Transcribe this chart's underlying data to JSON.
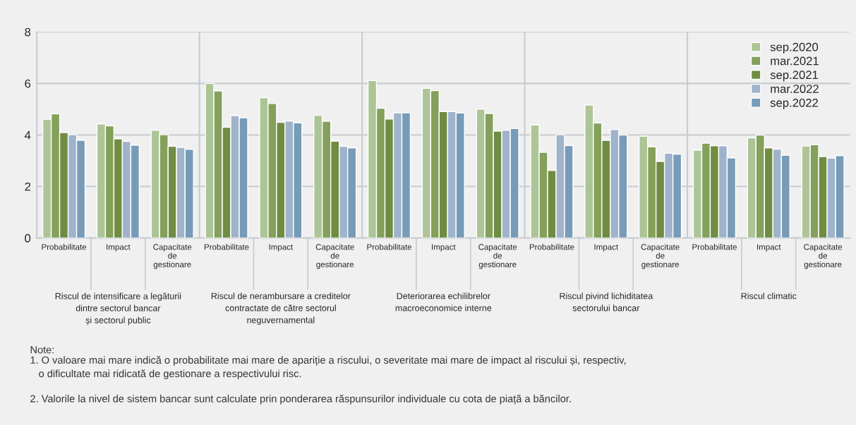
{
  "chart_data": {
    "type": "bar",
    "categories": [
      "Probabilitate",
      "Impact",
      "Capacitate\nde\ngestionare",
      "Probabilitate",
      "Impact",
      "Capacitate\nde\ngestionare",
      "Probabilitate",
      "Impact",
      "Capacitate\nde\ngestionare",
      "Probabilitate",
      "Impact",
      "Capacitate\nde\ngestionare",
      "Probabilitate",
      "Impact",
      "Capacitate\nde\ngestionare"
    ],
    "series": [
      {
        "name": "sep.2020",
        "color": "#adc596",
        "values": [
          4.61,
          4.43,
          4.18,
          6.0,
          5.45,
          4.76,
          6.11,
          5.81,
          5.0,
          4.39,
          5.16,
          3.95,
          3.41,
          3.89,
          3.57
        ]
      },
      {
        "name": "mar.2021",
        "color": "#84a05b",
        "values": [
          4.82,
          4.35,
          4.01,
          5.71,
          5.22,
          4.53,
          5.04,
          5.72,
          4.83,
          3.33,
          4.46,
          3.54,
          3.68,
          4.0,
          3.62
        ]
      },
      {
        "name": "sep.2021",
        "color": "#708c42",
        "values": [
          4.09,
          3.85,
          3.56,
          4.3,
          4.49,
          3.76,
          4.62,
          4.91,
          4.15,
          2.62,
          3.79,
          2.97,
          3.58,
          3.5,
          3.16
        ]
      },
      {
        "name": "mar.2022",
        "color": "#9fb4cb",
        "values": [
          4.01,
          3.75,
          3.52,
          4.75,
          4.54,
          3.56,
          4.86,
          4.91,
          4.18,
          4.01,
          4.21,
          3.29,
          3.58,
          3.45,
          3.1
        ]
      },
      {
        "name": "sep.2022",
        "color": "#789bb8",
        "values": [
          3.79,
          3.6,
          3.44,
          4.67,
          4.47,
          3.5,
          4.86,
          4.85,
          4.25,
          3.59,
          4.0,
          3.25,
          3.11,
          3.21,
          3.2
        ]
      }
    ],
    "ylim": [
      0,
      8
    ],
    "yticks": [
      0,
      2,
      4,
      6,
      8
    ],
    "grid": "y",
    "legend": "top right",
    "annotations": [
      "Riscul de intensificare a legăturii\ndintre sectorul bancar\nși sectorul public",
      "Riscul de nerambursare a creditelor\ncontractate de către sectorul\nneguvernamental",
      "Deteriorarea echilibrelor\nmacroeconomice interne",
      "Riscul pivind lichiditatea\nsectorului bancar",
      "Riscul climatic",
      "Note:",
      "1. O valoare mai mare indică o probabilitate mai mare de apariție a riscului, o severitate mai mare de impact al riscului și, respectiv,\n   o dificultate mai ridicată de gestionare a respectivului risc.",
      "2. Valorile la nivel de sistem bancar sunt calculate prin ponderarea răspunsurilor individuale cu cota de piață a băncilor."
    ]
  }
}
